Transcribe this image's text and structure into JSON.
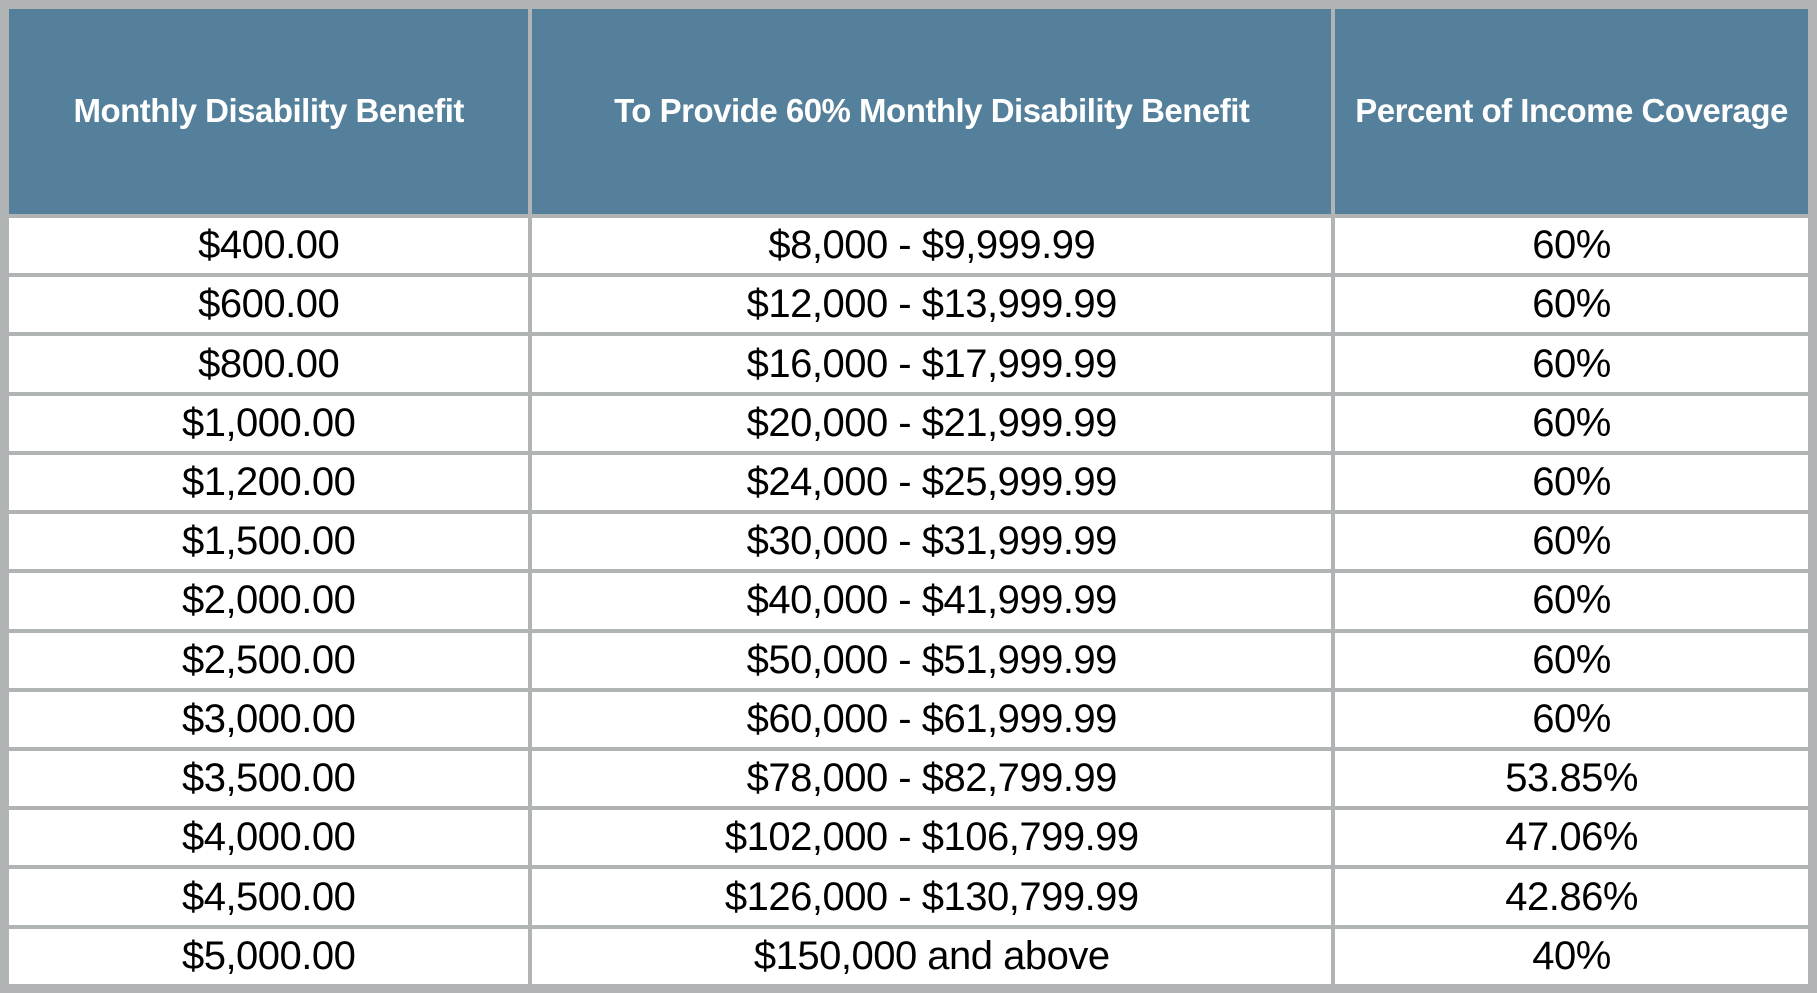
{
  "chart_data": {
    "type": "table",
    "title": "",
    "columns": [
      "Monthly Disability Benefit",
      "To Provide 60% Monthly Disability Benefit",
      "Percent of Income Coverage"
    ],
    "rows": [
      [
        "$400.00",
        "$8,000 - $9,999.99",
        "60%"
      ],
      [
        "$600.00",
        "$12,000 - $13,999.99",
        "60%"
      ],
      [
        "$800.00",
        "$16,000 - $17,999.99",
        "60%"
      ],
      [
        "$1,000.00",
        "$20,000 - $21,999.99",
        "60%"
      ],
      [
        "$1,200.00",
        "$24,000 - $25,999.99",
        "60%"
      ],
      [
        "$1,500.00",
        "$30,000 - $31,999.99",
        "60%"
      ],
      [
        "$2,000.00",
        "$40,000 - $41,999.99",
        "60%"
      ],
      [
        "$2,500.00",
        "$50,000 - $51,999.99",
        "60%"
      ],
      [
        "$3,000.00",
        "$60,000 - $61,999.99",
        "60%"
      ],
      [
        "$3,500.00",
        "$78,000 - $82,799.99",
        "53.85%"
      ],
      [
        "$4,000.00",
        "$102,000 - $106,799.99",
        "47.06%"
      ],
      [
        "$4,500.00",
        "$126,000 - $130,799.99",
        "42.86%"
      ],
      [
        "$5,000.00",
        "$150,000 and above",
        "40%"
      ]
    ],
    "layout": {
      "grid": "on",
      "header_height_ratio": 0.21,
      "column_width_ratios": [
        0.29,
        0.446,
        0.264
      ]
    },
    "colors": {
      "header_bg": "#54809b",
      "header_text": "#ffffff",
      "border": "#b1b4b4",
      "row_bg": "#ffffff",
      "body_text": "#000000"
    }
  }
}
